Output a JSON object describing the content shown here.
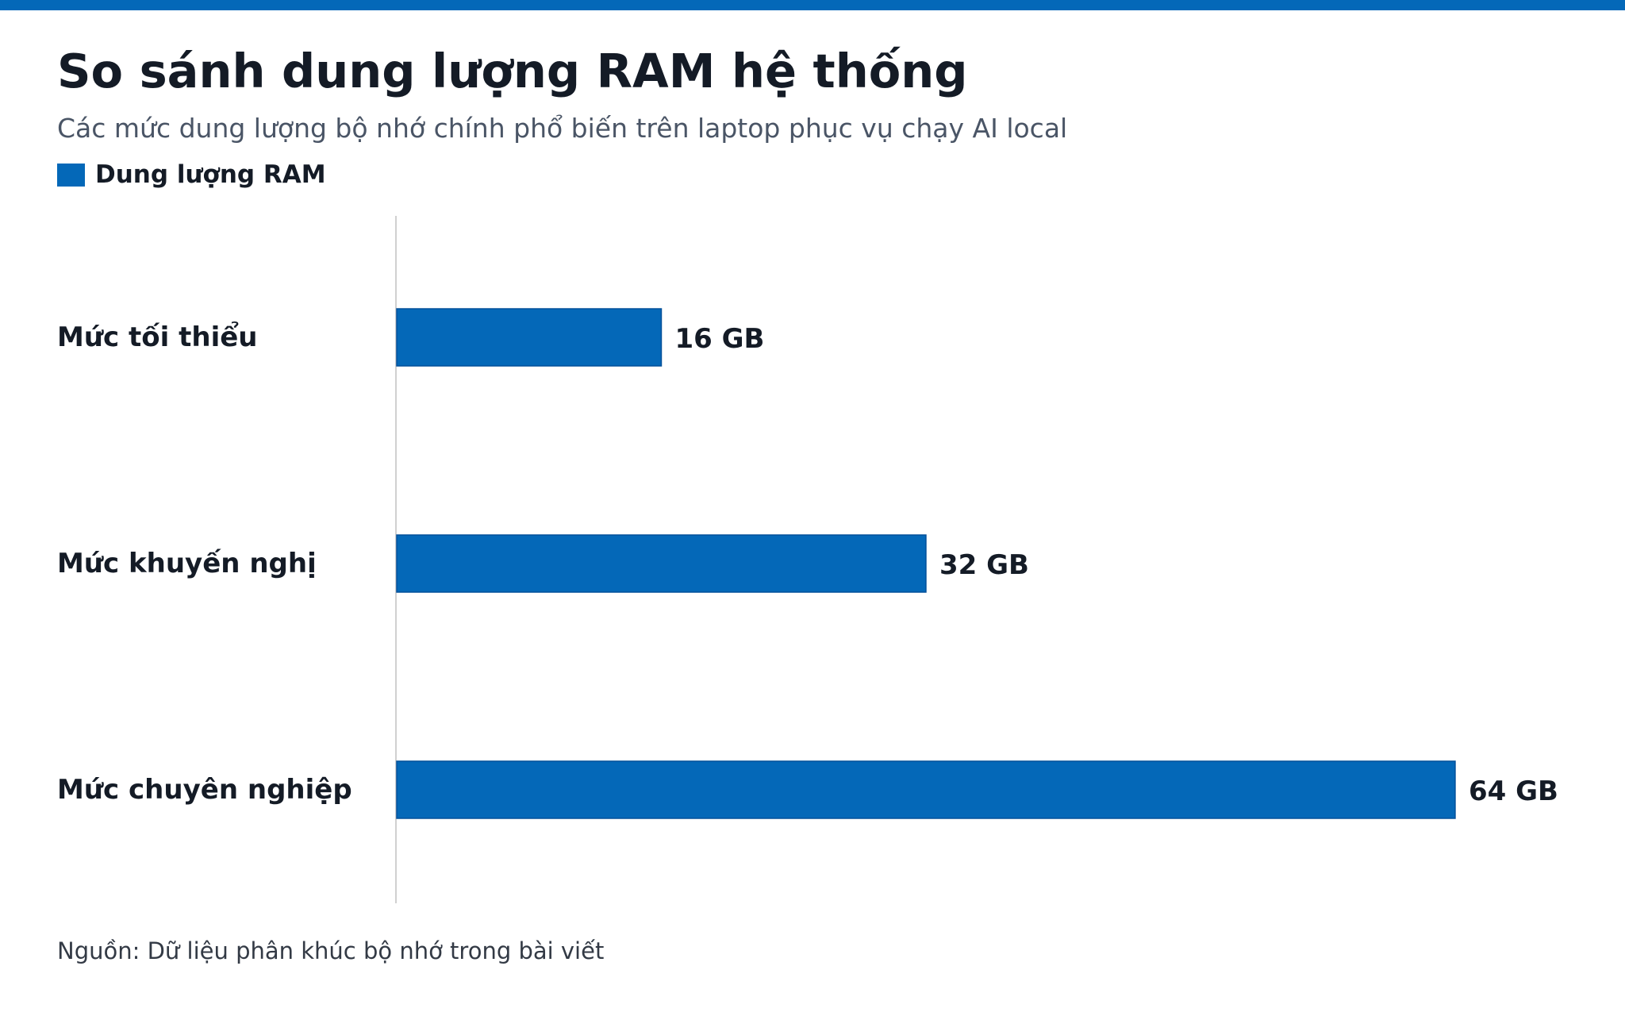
{
  "colors": {
    "accent": "#0468b8",
    "bar_stroke": "#03509a",
    "axis": "#d0d0d0"
  },
  "header": {
    "title": "So sánh dung lượng RAM hệ thống",
    "subtitle": "Các mức dung lượng bộ nhớ chính phổ biến trên laptop phục vụ chạy AI local"
  },
  "footer": {
    "source": "Nguồn: Dữ liệu phân khúc bộ nhớ trong bài viết"
  },
  "chart_data": {
    "type": "bar",
    "orientation": "horizontal",
    "title": "So sánh dung lượng RAM hệ thống",
    "subtitle": "Các mức dung lượng bộ nhớ chính phổ biến trên laptop phục vụ chạy AI local",
    "categories": [
      "Mức tối thiểu",
      "Mức khuyến nghị",
      "Mức chuyên nghiệp"
    ],
    "series": [
      {
        "name": "Dung lượng RAM",
        "values": [
          16,
          32,
          64
        ],
        "value_labels": [
          "16 GB",
          "32 GB",
          "64 GB"
        ]
      }
    ],
    "xlim": [
      0,
      70
    ],
    "grid": false,
    "legend": "top-left"
  }
}
